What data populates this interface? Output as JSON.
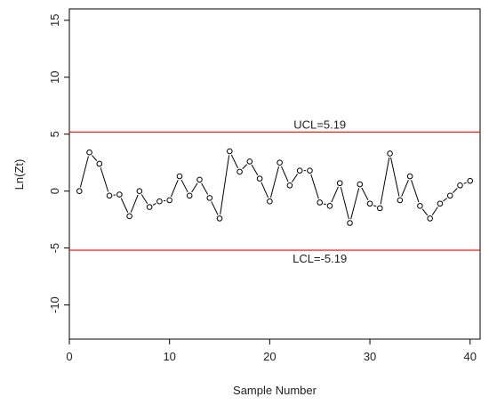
{
  "chart_data": {
    "type": "line",
    "title": "",
    "xlabel": "Sample Number",
    "ylabel": "Ln(Zt)",
    "xlim": [
      0,
      41
    ],
    "ylim": [
      -13,
      16
    ],
    "xticks": [
      0,
      10,
      20,
      30,
      40
    ],
    "yticks": [
      -10,
      -5,
      0,
      5,
      10,
      15
    ],
    "grid": false,
    "series": [
      {
        "x": [
          1,
          2,
          3,
          4,
          5,
          6,
          7,
          8,
          9,
          10,
          11,
          12,
          13,
          14,
          15,
          16,
          17,
          18,
          19,
          20,
          21,
          22,
          23,
          24,
          25,
          26,
          27,
          28,
          29,
          30,
          31,
          32,
          33,
          34,
          35,
          36,
          37,
          38,
          39,
          40
        ],
        "values": [
          0,
          3.4,
          2.4,
          -0.4,
          -0.3,
          -2.2,
          0,
          -1.4,
          -0.9,
          -0.8,
          1.3,
          -0.4,
          1.0,
          -0.6,
          -2.4,
          3.5,
          1.7,
          2.6,
          1.1,
          -0.9,
          2.5,
          0.5,
          1.8,
          1.8,
          -1.0,
          -1.3,
          0.7,
          -2.8,
          0.6,
          -1.1,
          -1.5,
          3.3,
          -0.8,
          1.3,
          -1.3,
          -2.4,
          -1.1,
          -0.4,
          0.5,
          0.9
        ],
        "color": "#000000"
      }
    ],
    "control_limits": [
      {
        "label": "UCL=5.19",
        "value": 5.19,
        "color": "#ff0000"
      },
      {
        "label": "LCL=-5.19",
        "value": -5.19,
        "color": "#ff0000"
      }
    ]
  }
}
